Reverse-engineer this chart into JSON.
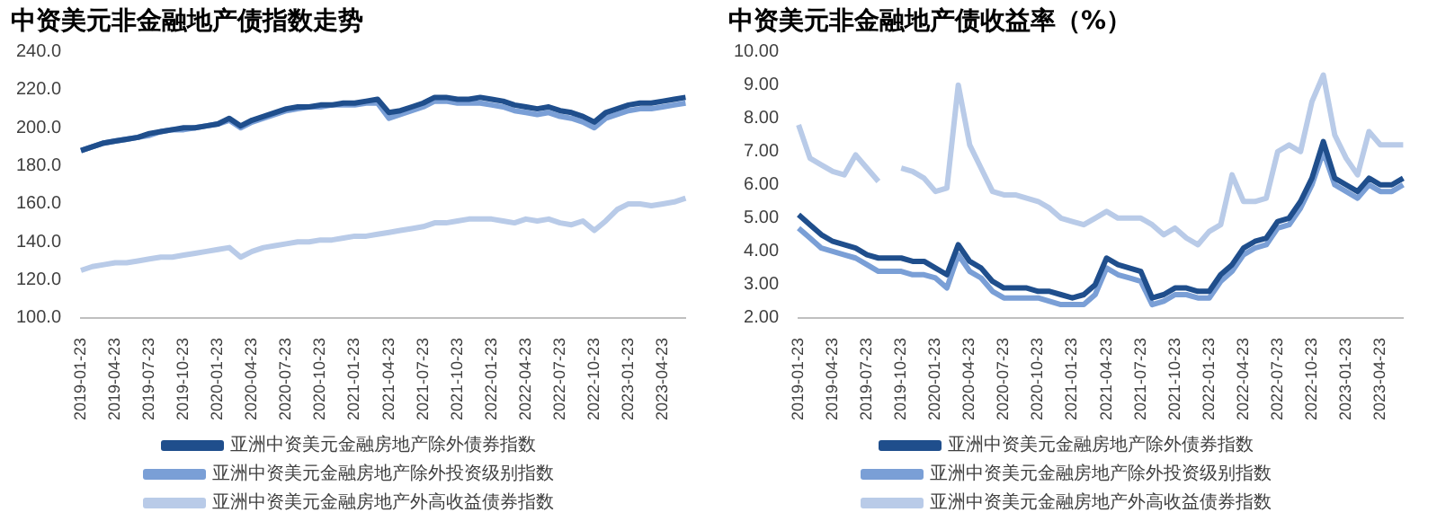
{
  "chart_data": [
    {
      "type": "line",
      "title": "中资美元非金融地产债指数走势",
      "categories": [
        "2019-01-23",
        null,
        null,
        "2019-04-23",
        null,
        null,
        "2019-07-23",
        null,
        null,
        "2019-10-23",
        null,
        null,
        "2020-01-23",
        null,
        null,
        "2020-04-23",
        null,
        null,
        "2020-07-23",
        null,
        null,
        "2020-10-23",
        null,
        null,
        "2021-01-23",
        null,
        null,
        "2021-04-23",
        null,
        null,
        "2021-07-23",
        null,
        null,
        "2021-10-23",
        null,
        null,
        "2022-01-23",
        null,
        null,
        "2022-04-23",
        null,
        null,
        "2022-07-23",
        null,
        null,
        "2022-10-23",
        null,
        null,
        "2023-01-23",
        null,
        null,
        "2023-04-23",
        null,
        null
      ],
      "series": [
        {
          "name": "亚洲中资美元金融房地产除外债券指数",
          "color": "#1f4e8c",
          "values": [
            188,
            190,
            192,
            193,
            194,
            195,
            197,
            198,
            199,
            200,
            200,
            201,
            202,
            205,
            201,
            204,
            206,
            208,
            210,
            211,
            211,
            212,
            212,
            213,
            213,
            214,
            215,
            208,
            209,
            211,
            213,
            216,
            216,
            215,
            215,
            216,
            215,
            214,
            212,
            211,
            210,
            211,
            209,
            208,
            206,
            203,
            208,
            210,
            212,
            213,
            213,
            214,
            215,
            216
          ]
        },
        {
          "name": "亚洲中资美元金融房地产除外投资级别指数",
          "color": "#7a9fd6",
          "values": [
            188,
            190,
            192,
            193,
            194,
            195,
            196,
            198,
            199,
            199,
            200,
            201,
            202,
            204,
            200,
            203,
            205,
            207,
            209,
            210,
            211,
            211,
            212,
            212,
            212,
            213,
            213,
            205,
            207,
            209,
            211,
            214,
            214,
            213,
            213,
            213,
            212,
            211,
            209,
            208,
            207,
            208,
            206,
            205,
            203,
            200,
            205,
            207,
            209,
            210,
            210,
            211,
            212,
            213
          ]
        },
        {
          "name": "亚洲中资美元金融房地产外高收益债券指数",
          "color": "#b9cbe8",
          "values": [
            125,
            127,
            128,
            129,
            129,
            130,
            131,
            132,
            132,
            133,
            134,
            135,
            136,
            137,
            132,
            135,
            137,
            138,
            139,
            140,
            140,
            141,
            141,
            142,
            143,
            143,
            144,
            145,
            146,
            147,
            148,
            150,
            150,
            151,
            152,
            152,
            152,
            151,
            150,
            152,
            151,
            152,
            150,
            149,
            151,
            146,
            151,
            157,
            160,
            160,
            159,
            160,
            161,
            163
          ]
        }
      ],
      "ylim": [
        100,
        240
      ],
      "yticks": [
        {
          "value": 100,
          "label": "100.0"
        },
        {
          "value": 120,
          "label": "120.0"
        },
        {
          "value": 140,
          "label": "140.0"
        },
        {
          "value": 160,
          "label": "160.0"
        },
        {
          "value": 180,
          "label": "180.0"
        },
        {
          "value": 200,
          "label": "200.0"
        },
        {
          "value": 220,
          "label": "220.0"
        },
        {
          "value": 240,
          "label": "240.0"
        }
      ],
      "grid": false,
      "legend": "bottom",
      "marker": "none"
    },
    {
      "type": "line",
      "title": "中资美元非金融地产债收益率（%）",
      "categories": [
        "2019-01-23",
        null,
        null,
        "2019-04-23",
        null,
        null,
        "2019-07-23",
        null,
        null,
        "2019-10-23",
        null,
        null,
        "2020-01-23",
        null,
        null,
        "2020-04-23",
        null,
        null,
        "2020-07-23",
        null,
        null,
        "2020-10-23",
        null,
        null,
        "2021-01-23",
        null,
        null,
        "2021-04-23",
        null,
        null,
        "2021-07-23",
        null,
        null,
        "2021-10-23",
        null,
        null,
        "2022-01-23",
        null,
        null,
        "2022-04-23",
        null,
        null,
        "2022-07-23",
        null,
        null,
        "2022-10-23",
        null,
        null,
        "2023-01-23",
        null,
        null,
        "2023-04-23",
        null,
        null
      ],
      "series": [
        {
          "name": "亚洲中资美元金融房地产除外债券指数",
          "color": "#1f4e8c",
          "values": [
            5.1,
            4.8,
            4.5,
            4.3,
            4.2,
            4.1,
            3.9,
            3.8,
            3.8,
            3.8,
            3.7,
            3.7,
            3.5,
            3.3,
            4.2,
            3.7,
            3.5,
            3.1,
            2.9,
            2.9,
            2.9,
            2.8,
            2.8,
            2.7,
            2.6,
            2.7,
            3.0,
            3.8,
            3.6,
            3.5,
            3.4,
            2.6,
            2.7,
            2.9,
            2.9,
            2.8,
            2.8,
            3.3,
            3.6,
            4.1,
            4.3,
            4.4,
            4.9,
            5.0,
            5.5,
            6.2,
            7.3,
            6.2,
            6.0,
            5.8,
            6.2,
            6.0,
            6.0,
            6.2
          ]
        },
        {
          "name": "亚洲中资美元金融房地产除外投资级别指数",
          "color": "#7a9fd6",
          "values": [
            4.7,
            4.4,
            4.1,
            4.0,
            3.9,
            3.8,
            3.6,
            3.4,
            3.4,
            3.4,
            3.3,
            3.3,
            3.2,
            2.9,
            3.9,
            3.4,
            3.2,
            2.8,
            2.6,
            2.6,
            2.6,
            2.6,
            2.5,
            2.4,
            2.4,
            2.4,
            2.7,
            3.5,
            3.3,
            3.2,
            3.1,
            2.4,
            2.5,
            2.7,
            2.7,
            2.6,
            2.6,
            3.1,
            3.4,
            3.9,
            4.1,
            4.2,
            4.7,
            4.8,
            5.3,
            6.0,
            7.0,
            6.0,
            5.8,
            5.6,
            6.0,
            5.8,
            5.8,
            6.0
          ]
        },
        {
          "name": "亚洲中资美元金融房地产外高收益债券指数",
          "color": "#b9cbe8",
          "values": [
            7.8,
            6.8,
            6.6,
            6.4,
            6.3,
            6.9,
            6.5,
            6.1,
            null,
            6.5,
            6.4,
            6.2,
            5.8,
            5.9,
            9.0,
            7.2,
            6.5,
            5.8,
            5.7,
            5.7,
            5.6,
            5.5,
            5.3,
            5.0,
            4.9,
            4.8,
            5.0,
            5.2,
            5.0,
            5.0,
            5.0,
            4.8,
            4.5,
            4.7,
            4.4,
            4.2,
            4.6,
            4.8,
            6.3,
            5.5,
            5.5,
            5.6,
            7.0,
            7.2,
            7.0,
            8.5,
            9.3,
            7.5,
            6.8,
            6.3,
            7.6,
            7.2,
            7.2,
            7.2
          ]
        }
      ],
      "ylim": [
        2,
        10
      ],
      "yticks": [
        {
          "value": 2,
          "label": "2.00"
        },
        {
          "value": 3,
          "label": "3.00"
        },
        {
          "value": 4,
          "label": "4.00"
        },
        {
          "value": 5,
          "label": "5.00"
        },
        {
          "value": 6,
          "label": "6.00"
        },
        {
          "value": 7,
          "label": "7.00"
        },
        {
          "value": 8,
          "label": "8.00"
        },
        {
          "value": 9,
          "label": "9.00"
        },
        {
          "value": 10,
          "label": "10.00"
        }
      ],
      "grid": false,
      "legend": "bottom",
      "marker": "none"
    }
  ]
}
